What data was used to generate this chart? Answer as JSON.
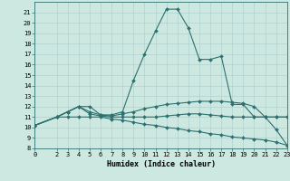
{
  "xlabel": "Humidex (Indice chaleur)",
  "bg_color": "#cce8e0",
  "grid_color": "#aacccc",
  "line_color": "#2d7070",
  "xmin": 0,
  "xmax": 23,
  "ymin": 8,
  "ymax": 22,
  "lines": [
    {
      "x": [
        0,
        2,
        3,
        4,
        5,
        6,
        7,
        8,
        9,
        10,
        11,
        12,
        13,
        14,
        15,
        16,
        17,
        18,
        19,
        20,
        21,
        22,
        23
      ],
      "y": [
        10.2,
        11.0,
        11.5,
        12.0,
        12.0,
        11.2,
        11.2,
        11.5,
        14.5,
        17.0,
        19.2,
        21.3,
        21.3,
        19.5,
        16.5,
        16.5,
        16.8,
        12.2,
        12.2,
        11.0,
        11.0,
        9.8,
        8.3
      ]
    },
    {
      "x": [
        0,
        2,
        3,
        4,
        5,
        6,
        7,
        8,
        9,
        10,
        11,
        12,
        13,
        14,
        15,
        16,
        17,
        18,
        19,
        20,
        21,
        22,
        23
      ],
      "y": [
        10.2,
        11.0,
        11.5,
        12.0,
        11.5,
        11.2,
        11.1,
        11.3,
        11.5,
        11.8,
        12.0,
        12.2,
        12.3,
        12.4,
        12.5,
        12.5,
        12.5,
        12.4,
        12.3,
        12.0,
        11.0,
        11.0,
        11.0
      ]
    },
    {
      "x": [
        0,
        2,
        3,
        4,
        5,
        6,
        7,
        8,
        9,
        10,
        11,
        12,
        13,
        14,
        15,
        16,
        17,
        18,
        19,
        20,
        21,
        22,
        23
      ],
      "y": [
        10.2,
        11.0,
        11.5,
        12.0,
        11.3,
        11.1,
        11.0,
        11.0,
        11.0,
        11.0,
        11.0,
        11.1,
        11.2,
        11.3,
        11.3,
        11.2,
        11.1,
        11.0,
        11.0,
        11.0,
        11.0,
        11.0,
        11.0
      ]
    },
    {
      "x": [
        0,
        2,
        3,
        4,
        5,
        6,
        7,
        8,
        9,
        10,
        11,
        12,
        13,
        14,
        15,
        16,
        17,
        18,
        19,
        20,
        21,
        22,
        23
      ],
      "y": [
        10.2,
        11.0,
        11.0,
        11.0,
        11.0,
        11.0,
        10.8,
        10.7,
        10.5,
        10.3,
        10.2,
        10.0,
        9.9,
        9.7,
        9.6,
        9.4,
        9.3,
        9.1,
        9.0,
        8.9,
        8.8,
        8.6,
        8.3
      ]
    }
  ],
  "xtick_values": [
    0,
    2,
    3,
    4,
    5,
    6,
    7,
    8,
    9,
    10,
    11,
    12,
    13,
    14,
    15,
    16,
    17,
    18,
    19,
    20,
    21,
    22,
    23
  ],
  "xtick_labels": [
    "0",
    "2",
    "3",
    "4",
    "5",
    "6",
    "7",
    "8",
    "9",
    "10",
    "11",
    "12",
    "13",
    "14",
    "15",
    "16",
    "17",
    "18",
    "19",
    "20",
    "21",
    "22",
    "23"
  ],
  "ytick_values": [
    8,
    9,
    10,
    11,
    12,
    13,
    14,
    15,
    16,
    17,
    18,
    19,
    20,
    21
  ],
  "marker": "D",
  "markersize": 2.0,
  "linewidth": 0.8,
  "tick_fontsize": 5.0,
  "label_fontsize": 6.0
}
